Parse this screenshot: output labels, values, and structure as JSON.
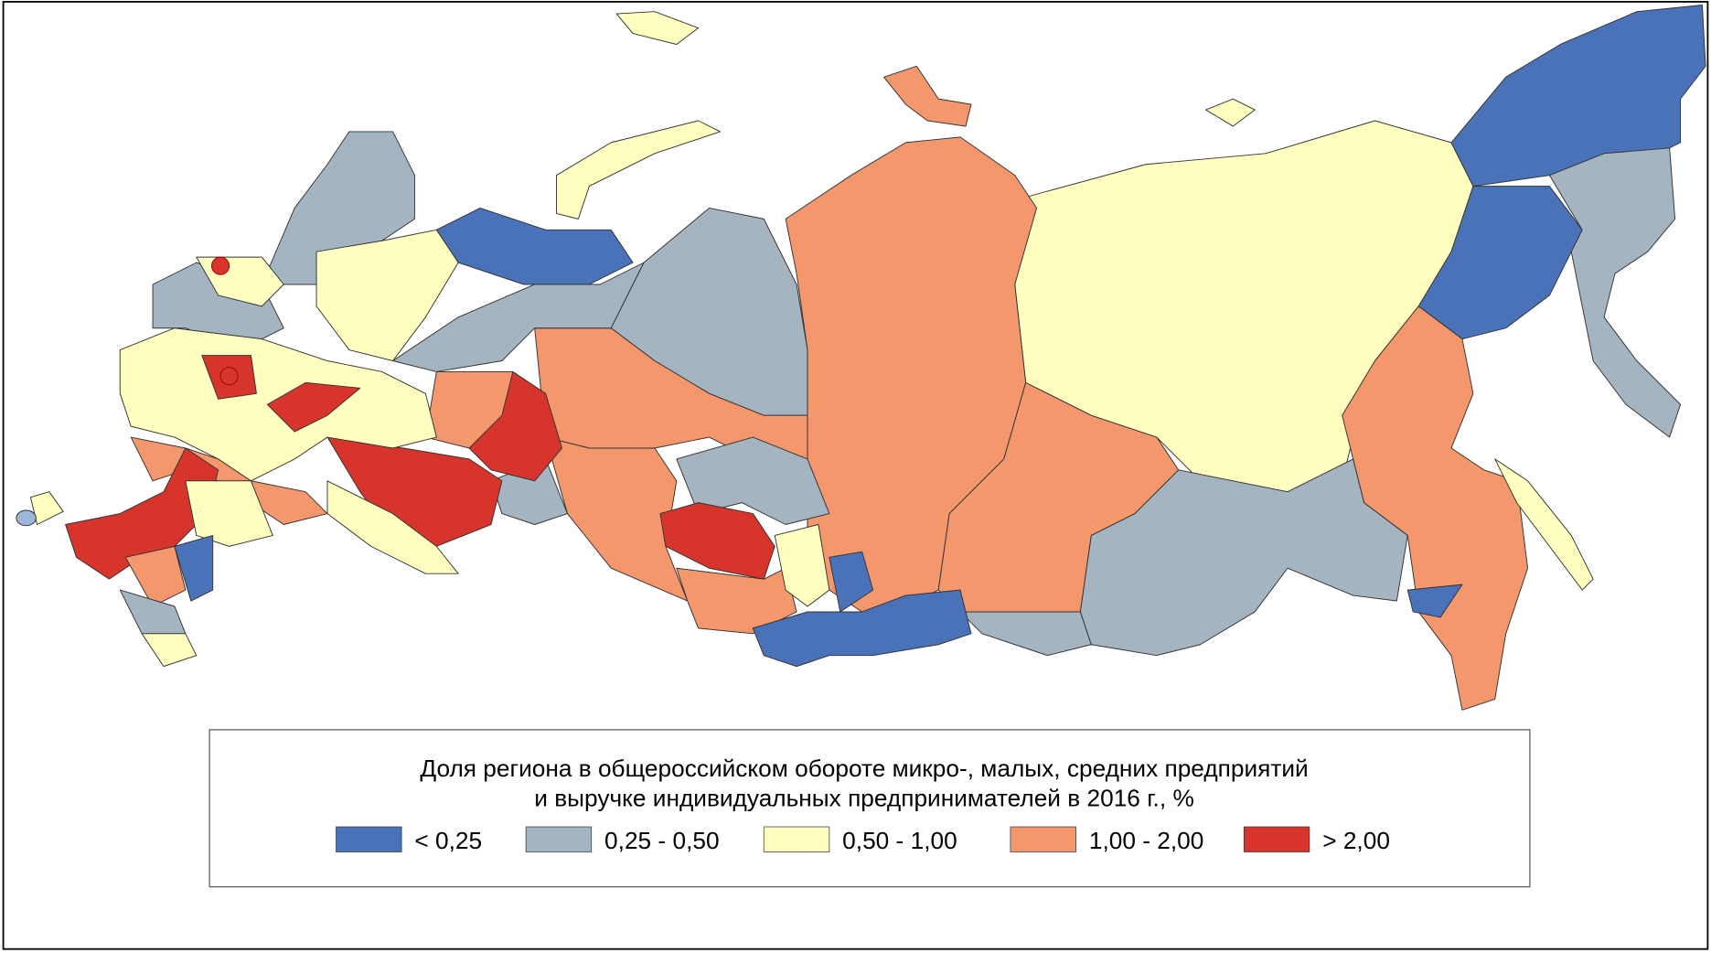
{
  "legend": {
    "title_lines": [
      "Доля региона в общероссийском обороте микро-, малых, средних предприятий",
      "и выручке индивидуальных предпринимателей в 2016 г., %"
    ],
    "items": [
      {
        "label": "< 0,25",
        "color": "#4a72b8"
      },
      {
        "label": "0,25 - 0,50",
        "color": "#a5b4c1"
      },
      {
        "label": "0,50 - 1,00",
        "color": "#ffffc0"
      },
      {
        "label": "1,00 - 2,00",
        "color": "#f4976c"
      },
      {
        "label": "> 2,00",
        "color": "#d7352b"
      }
    ]
  }
}
